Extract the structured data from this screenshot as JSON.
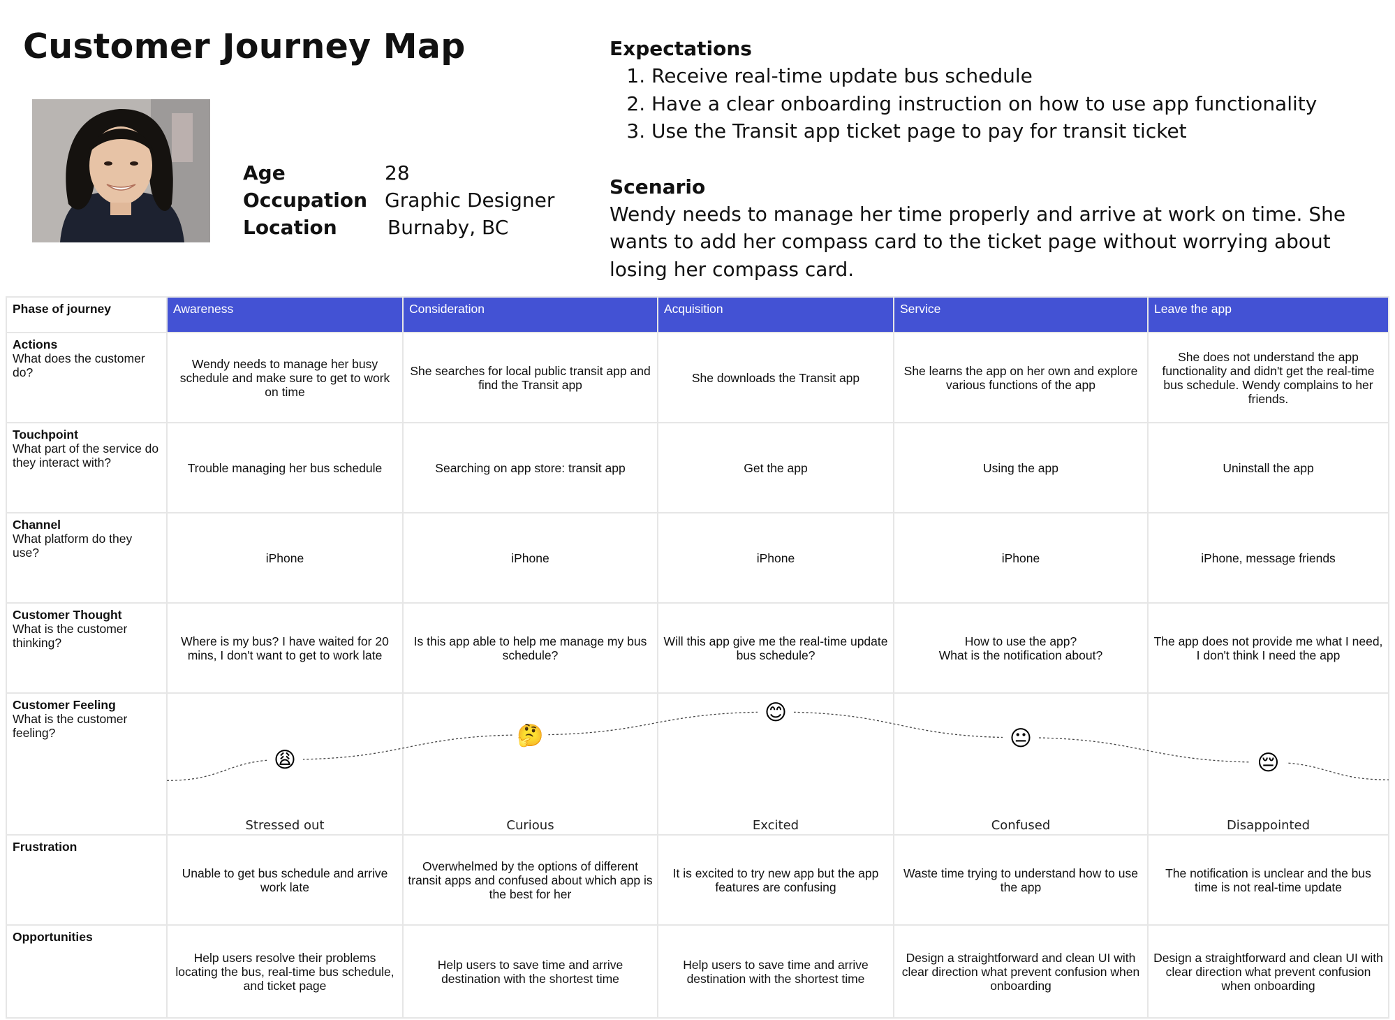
{
  "title": "Customer Journey Map",
  "persona": {
    "age_label": "Age",
    "age": "28",
    "occupation_label": "Occupation",
    "occupation": "Graphic Designer",
    "location_label": "Location",
    "location": "Burnaby, BC"
  },
  "expectations": {
    "heading": "Expectations",
    "items": [
      "Receive real-time update bus schedule",
      "Have a clear onboarding instruction on how to use app functionality",
      "Use the Transit app ticket page to pay for transit ticket"
    ]
  },
  "scenario": {
    "heading": "Scenario",
    "text": "Wendy needs to manage her time properly and arrive at work on time. She wants to add her compass card to the ticket page without worrying about losing her compass card."
  },
  "colors": {
    "phase_header_bg": "#4352d4",
    "phase_header_text": "#ffffff",
    "grid_line": "#e6e6e6"
  },
  "table": {
    "phase_label": "Phase of journey",
    "phases": [
      "Awareness",
      "Consideration",
      "Acquisition",
      "Service",
      "Leave the app"
    ],
    "rows": [
      {
        "title": "Actions",
        "subtitle": "What does the customer do?",
        "cells": [
          "Wendy needs to manage her busy schedule and make sure to get to work on time",
          "She searches for local public transit app and find the Transit app",
          "She downloads the Transit app",
          "She learns the app on her own and explore various functions of the app",
          "She does not understand the app functionality and didn't get the real-time bus schedule. Wendy complains to her friends."
        ]
      },
      {
        "title": "Touchpoint",
        "subtitle": "What part of the service do they interact with?",
        "cells": [
          "Trouble managing her bus schedule",
          "Searching on app store: transit app",
          "Get the app",
          "Using the app",
          "Uninstall the app"
        ]
      },
      {
        "title": "Channel",
        "subtitle": "What platform do they use?",
        "cells": [
          "iPhone",
          "iPhone",
          "iPhone",
          "iPhone",
          "iPhone, message friends"
        ]
      },
      {
        "title": "Customer Thought",
        "subtitle": "What is the customer thinking?",
        "cells": [
          "Where is my bus? I have waited for 20 mins, I don't want to get to work late",
          "Is this app able to help me manage my bus schedule?",
          "Will this app give me the real-time update bus schedule?",
          "How to use the app?\nWhat is the notification about?",
          "The app does not provide me what I need, I don't think I need the app"
        ]
      }
    ],
    "feeling": {
      "title": "Customer Feeling",
      "subtitle": "What is the customer feeling?",
      "items": [
        {
          "emoji": "😩",
          "label": "Stressed out",
          "icon": "weary-face-icon",
          "level": 0.38
        },
        {
          "emoji": "🤔",
          "label": "Curious",
          "icon": "thinking-face-icon",
          "level": 0.65
        },
        {
          "emoji": "😊",
          "label": "Excited",
          "icon": "smiling-face-icon",
          "level": 0.9
        },
        {
          "emoji": "😐",
          "label": "Confused",
          "icon": "neutral-face-icon",
          "level": 0.62
        },
        {
          "emoji": "😔",
          "label": "Disappointed",
          "icon": "pensive-face-icon",
          "level": 0.35
        }
      ]
    },
    "rows_after": [
      {
        "title": "Frustration",
        "subtitle": "",
        "cells": [
          "Unable to get bus schedule and arrive work late",
          "Overwhelmed by the options of different transit apps and confused about which app is the best for her",
          "It is excited to try new app but the app features are confusing",
          "Waste time trying to understand how to use the app",
          "The notification is unclear and the bus time is not real-time update"
        ]
      },
      {
        "title": "Opportunities",
        "subtitle": "",
        "cells": [
          "Help users resolve their problems locating the bus, real-time bus schedule, and ticket page",
          "Help users to save time and arrive destination with the shortest time",
          "Help users to save time and arrive destination with the shortest time",
          "Design a straightforward and clean UI with clear direction what prevent confusion when onboarding",
          "Design a straightforward and clean UI with clear direction what prevent confusion when onboarding"
        ]
      }
    ]
  }
}
